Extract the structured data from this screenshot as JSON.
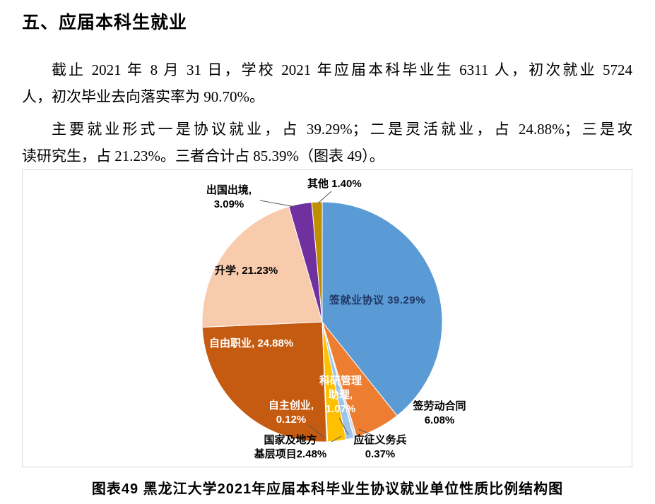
{
  "page": {
    "heading": "五、应届本科生就业",
    "para1_lines": [
      "截止 2021 年 8 月 31 日，学校 2021 年应届本科毕业生 6311 人，初次就业 5724",
      "人，初次毕业去向落实率为 90.70%。"
    ],
    "para2_lines": [
      "主要就业形式一是协议就业，占 39.29%；二是灵活就业，占 24.88%；三是攻",
      "读研究生，占 21.23%。三者合计占 85.39%（图表 49）。"
    ],
    "caption": "图表49 黑龙江大学2021年应届本科毕业生协议就业单位性质比例结构图"
  },
  "chart_data": {
    "type": "pie",
    "title": "图表49 黑龙江大学2021年应届本科毕业生协议就业单位性质比例结构图",
    "legend_position": "none",
    "unit": "%",
    "slices": [
      {
        "label": "签就业协议",
        "value": 39.29,
        "color": "#5B9BD5",
        "display": "签就业协议 39.29%"
      },
      {
        "label": "签劳动合同",
        "value": 6.08,
        "color": "#ED7D31",
        "display": "签劳动合同\n6.08%"
      },
      {
        "label": "应征义务兵",
        "value": 0.37,
        "color": "#D6DCE5",
        "display": "应征义务兵\n0.37%"
      },
      {
        "label": "科研管理助理",
        "value": 1.07,
        "color": "#9DC3E6",
        "display": "科研管理\n助理,\n1.07%"
      },
      {
        "label": "国家及地方基层项目",
        "value": 2.48,
        "color": "#FFC000",
        "display": "国家及地方\n基层项目2.48%"
      },
      {
        "label": "自主创业",
        "value": 0.12,
        "color": "#70AD47",
        "display": "自主创业,\n0.12%"
      },
      {
        "label": "自由职业",
        "value": 24.88,
        "color": "#C55A11",
        "display": "自由职业, 24.88%"
      },
      {
        "label": "升学",
        "value": 21.23,
        "color": "#F8CBAD",
        "display": "升学, 21.23%"
      },
      {
        "label": "出国出境",
        "value": 3.09,
        "color": "#7030A0",
        "display": "出国出境,\n3.09%"
      },
      {
        "label": "其他",
        "value": 1.4,
        "color": "#BF8F00",
        "display": "其他 1.40%"
      }
    ]
  }
}
